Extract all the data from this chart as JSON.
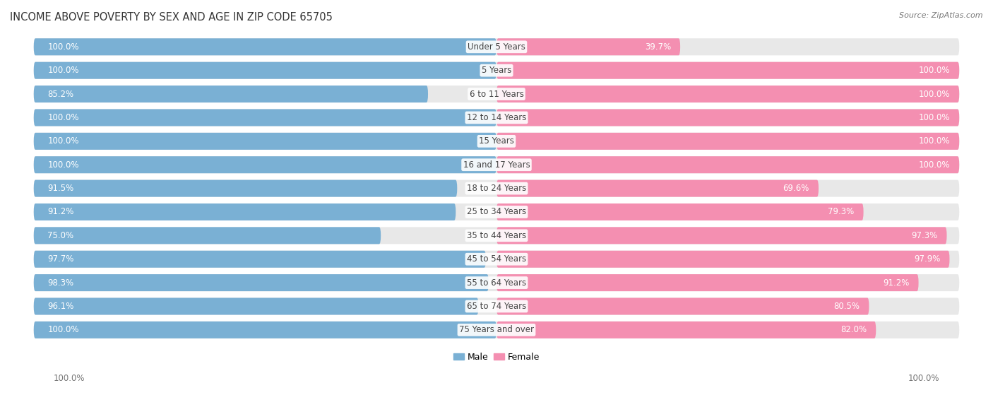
{
  "title": "INCOME ABOVE POVERTY BY SEX AND AGE IN ZIP CODE 65705",
  "source": "Source: ZipAtlas.com",
  "categories": [
    "Under 5 Years",
    "5 Years",
    "6 to 11 Years",
    "12 to 14 Years",
    "15 Years",
    "16 and 17 Years",
    "18 to 24 Years",
    "25 to 34 Years",
    "35 to 44 Years",
    "45 to 54 Years",
    "55 to 64 Years",
    "65 to 74 Years",
    "75 Years and over"
  ],
  "male_values": [
    100.0,
    100.0,
    85.2,
    100.0,
    100.0,
    100.0,
    91.5,
    91.2,
    75.0,
    97.7,
    98.3,
    96.1,
    100.0
  ],
  "female_values": [
    39.7,
    100.0,
    100.0,
    100.0,
    100.0,
    100.0,
    69.6,
    79.3,
    97.3,
    97.9,
    91.2,
    80.5,
    82.0
  ],
  "male_color": "#7ab0d4",
  "female_color": "#f48fb1",
  "male_color_light": "#aed4ec",
  "female_color_light": "#fbbfd4",
  "male_label": "Male",
  "female_label": "Female",
  "title_fontsize": 10.5,
  "label_fontsize": 8.5,
  "category_fontsize": 8.5,
  "source_fontsize": 8,
  "bg_row_color": "#e8e8e8",
  "axis_label_bottom_left": "100.0%",
  "axis_label_bottom_right": "100.0%"
}
